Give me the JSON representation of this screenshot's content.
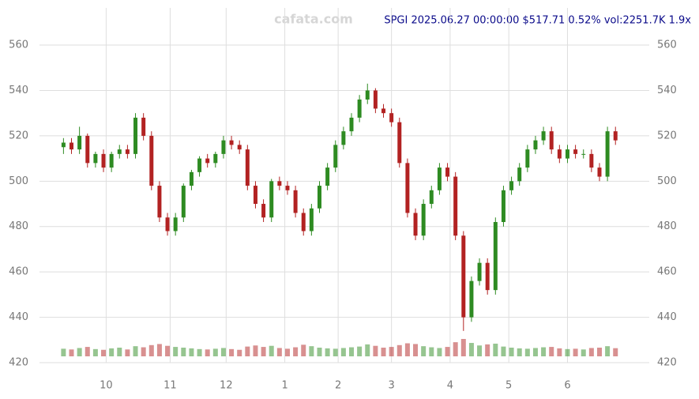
{
  "chart_data": {
    "type": "candlestick",
    "title": "SPGI 2025.06.27 00:00:00 $517.71 0.52% vol:2251.7K 1.9x",
    "watermark": "cafata.com",
    "xlim": [
      0,
      210
    ],
    "xticks": [
      {
        "value": 17,
        "label": "10"
      },
      {
        "value": 41,
        "label": "11"
      },
      {
        "value": 62,
        "label": "12"
      },
      {
        "value": 84,
        "label": "1"
      },
      {
        "value": 104,
        "label": "2"
      },
      {
        "value": 124,
        "label": "3"
      },
      {
        "value": 146,
        "label": "4"
      },
      {
        "value": 168,
        "label": "5"
      },
      {
        "value": 190,
        "label": "6"
      }
    ],
    "ylim": [
      420,
      570
    ],
    "yticks": [
      420,
      440,
      460,
      480,
      500,
      520,
      540,
      560
    ],
    "grid": true,
    "up_color": "#2e8b22",
    "down_color": "#b22222",
    "x": [
      1,
      4,
      7,
      10,
      13,
      16,
      19,
      22,
      25,
      28,
      31,
      34,
      37,
      40,
      43,
      46,
      49,
      52,
      55,
      58,
      61,
      64,
      67,
      70,
      73,
      76,
      79,
      82,
      85,
      88,
      91,
      94,
      97,
      100,
      103,
      106,
      109,
      112,
      115,
      118,
      121,
      124,
      127,
      130,
      133,
      136,
      139,
      142,
      145,
      148,
      151,
      154,
      157,
      160,
      163,
      166,
      169,
      172,
      175,
      178,
      181,
      184,
      187,
      190,
      193,
      196,
      199,
      202,
      205,
      208
    ],
    "open": [
      515,
      517,
      514,
      520,
      508,
      512,
      506,
      512,
      514,
      512,
      528,
      520,
      498,
      484,
      478,
      484,
      498,
      504,
      510,
      508,
      512,
      518,
      516,
      514,
      498,
      490,
      484,
      500,
      498,
      496,
      486,
      478,
      488,
      498,
      506,
      516,
      522,
      528,
      536,
      540,
      532,
      530,
      526,
      508,
      486,
      476,
      490,
      496,
      506,
      502,
      476,
      440,
      456,
      464,
      452,
      482,
      496,
      500,
      506,
      514,
      518,
      522,
      514,
      510,
      514,
      512,
      512,
      506,
      502,
      522
    ],
    "high": [
      519,
      519,
      524,
      521,
      513,
      514,
      513,
      516,
      516,
      530,
      530,
      522,
      500,
      486,
      486,
      499,
      505,
      511,
      512,
      513,
      520,
      520,
      518,
      516,
      500,
      492,
      501,
      502,
      500,
      498,
      488,
      490,
      500,
      508,
      518,
      524,
      530,
      538,
      543,
      541,
      534,
      532,
      528,
      510,
      488,
      492,
      498,
      508,
      508,
      504,
      478,
      458,
      466,
      466,
      484,
      498,
      502,
      508,
      516,
      520,
      524,
      524,
      516,
      516,
      516,
      514,
      514,
      508,
      524,
      524
    ],
    "low": [
      512,
      512,
      512,
      506,
      506,
      504,
      504,
      510,
      510,
      510,
      518,
      496,
      482,
      476,
      476,
      482,
      496,
      502,
      506,
      506,
      510,
      514,
      512,
      496,
      488,
      482,
      482,
      496,
      494,
      484,
      476,
      476,
      486,
      496,
      504,
      514,
      520,
      526,
      534,
      530,
      528,
      524,
      506,
      484,
      474,
      474,
      488,
      494,
      500,
      474,
      434,
      438,
      454,
      450,
      450,
      480,
      494,
      498,
      504,
      512,
      516,
      512,
      508,
      508,
      510,
      510,
      504,
      500,
      500,
      516
    ],
    "close": [
      517,
      514,
      520,
      508,
      512,
      506,
      512,
      514,
      512,
      528,
      520,
      498,
      484,
      478,
      484,
      498,
      504,
      510,
      508,
      512,
      518,
      516,
      514,
      498,
      490,
      484,
      500,
      498,
      496,
      486,
      478,
      488,
      498,
      506,
      516,
      522,
      528,
      536,
      540,
      532,
      530,
      526,
      508,
      486,
      476,
      490,
      496,
      506,
      502,
      476,
      440,
      456,
      464,
      452,
      482,
      496,
      500,
      506,
      514,
      518,
      522,
      514,
      510,
      514,
      512,
      512,
      506,
      502,
      522,
      518
    ],
    "volume": [
      2100,
      1900,
      2300,
      2600,
      2000,
      1800,
      2200,
      2400,
      1900,
      2800,
      2500,
      3100,
      3400,
      2900,
      2600,
      2400,
      2200,
      2000,
      1900,
      2100,
      2300,
      2000,
      1800,
      2700,
      3000,
      2600,
      2900,
      2300,
      2100,
      2500,
      3200,
      2800,
      2400,
      2200,
      2100,
      2300,
      2500,
      2700,
      3300,
      2900,
      2400,
      2600,
      3100,
      3600,
      3400,
      2800,
      2500,
      2300,
      2600,
      3900,
      4800,
      3700,
      3000,
      3300,
      3500,
      2700,
      2400,
      2200,
      2100,
      2300,
      2500,
      2600,
      2200,
      2000,
      2100,
      1900,
      2300,
      2400,
      2800,
      2251.7
    ]
  }
}
